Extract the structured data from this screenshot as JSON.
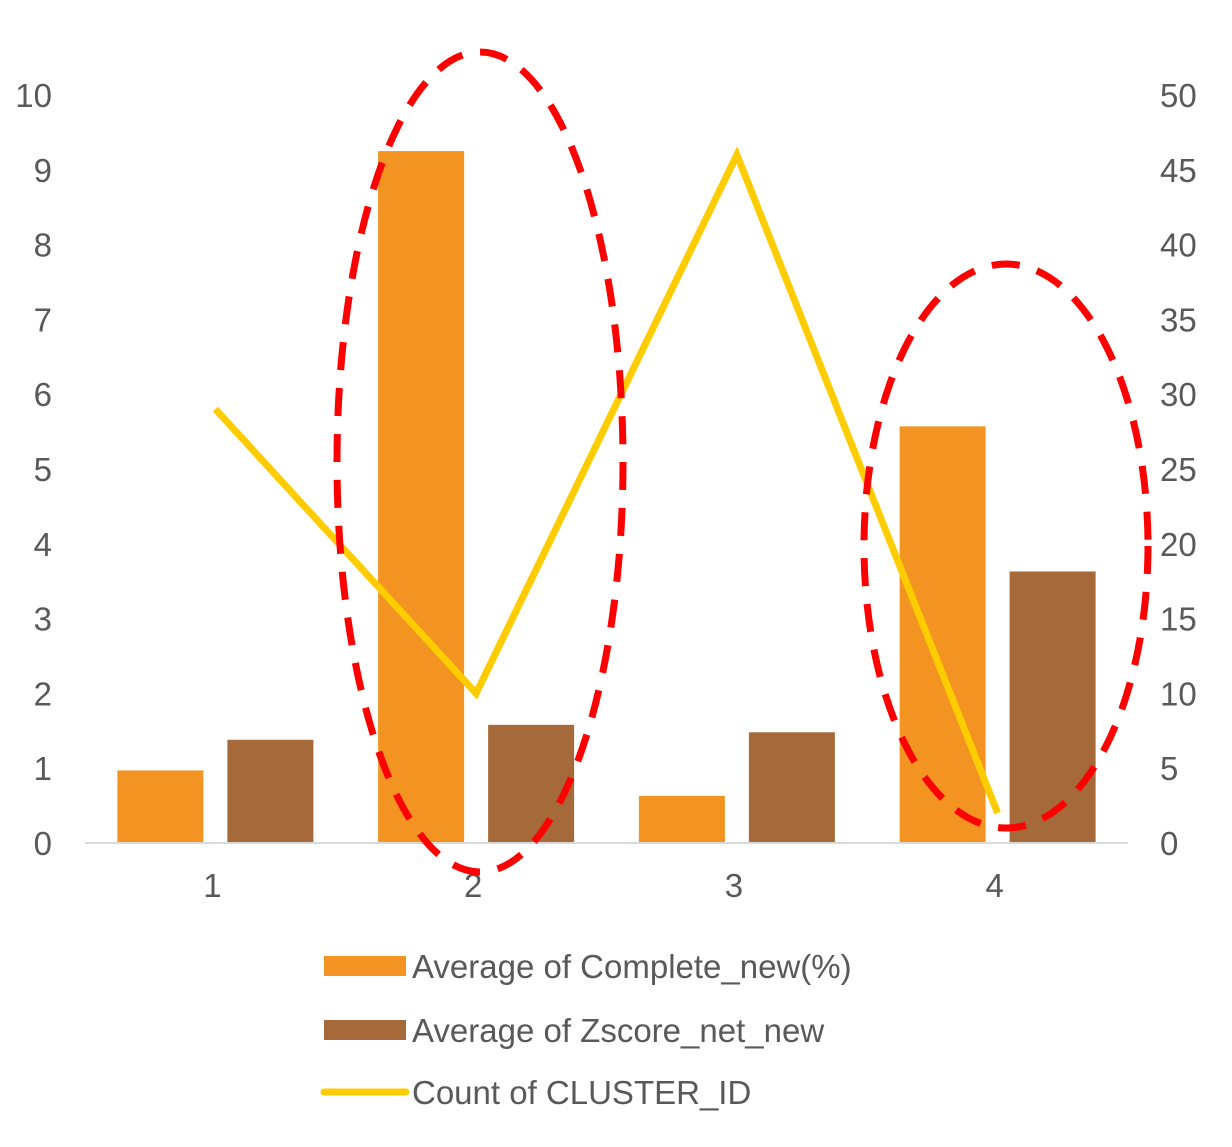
{
  "chart_data": {
    "type": "bar",
    "categories": [
      "1",
      "2",
      "3",
      "4"
    ],
    "series": [
      {
        "name": "Average of Complete_new(%)",
        "type": "bar",
        "axis": "left",
        "color": "#F39321",
        "values": [
          0.97,
          9.25,
          0.63,
          5.57
        ]
      },
      {
        "name": "Average of Zscore_net_new",
        "type": "bar",
        "axis": "left",
        "color": "#A5693A",
        "values": [
          1.38,
          1.58,
          1.48,
          3.63
        ]
      },
      {
        "name": "Count of CLUSTER_ID",
        "type": "line",
        "axis": "right",
        "color": "#FFCC00",
        "values": [
          29,
          10,
          46,
          2
        ]
      }
    ],
    "ylim": [
      0,
      10
    ],
    "y2lim": [
      0,
      50
    ],
    "y_ticks": [
      "0",
      "1",
      "2",
      "3",
      "4",
      "5",
      "6",
      "7",
      "8",
      "9",
      "10"
    ],
    "y2_ticks": [
      "0",
      "5",
      "10",
      "15",
      "20",
      "25",
      "30",
      "35",
      "40",
      "45",
      "50"
    ],
    "highlight_color": "#FF0000",
    "highlighted_categories": [
      "2",
      "4"
    ],
    "legend_position": "bottom",
    "grid": false
  }
}
